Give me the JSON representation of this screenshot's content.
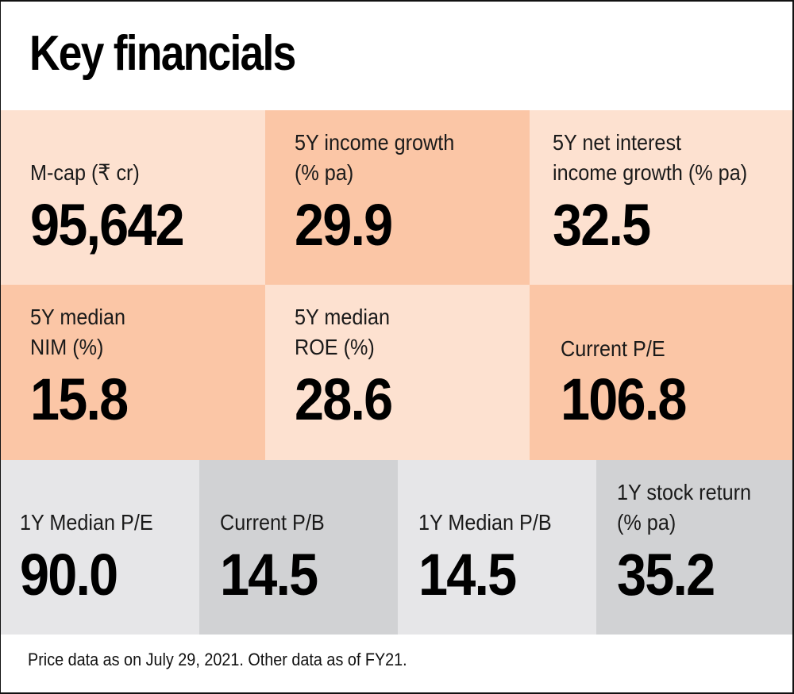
{
  "title": "Key financials",
  "row1": [
    {
      "label_lines": [
        "M-cap (₹ cr)"
      ],
      "value": "95,642"
    },
    {
      "label_lines": [
        "5Y income growth",
        "(% pa)"
      ],
      "value": "29.9"
    },
    {
      "label_lines": [
        "5Y net interest",
        "income growth (% pa)"
      ],
      "value": "32.5"
    }
  ],
  "row2": [
    {
      "label_lines": [
        "5Y median",
        "NIM (%)"
      ],
      "value": "15.8"
    },
    {
      "label_lines": [
        "5Y median",
        "ROE (%)"
      ],
      "value": "28.6"
    },
    {
      "label_lines": [
        "Current P/E"
      ],
      "value": "106.8"
    }
  ],
  "row3": [
    {
      "label_lines": [
        "1Y Median P/E"
      ],
      "value": "90.0"
    },
    {
      "label_lines": [
        "Current P/B"
      ],
      "value": "14.5"
    },
    {
      "label_lines": [
        "1Y Median P/B"
      ],
      "value": "14.5"
    },
    {
      "label_lines": [
        "1Y stock return",
        "(% pa)"
      ],
      "value": "35.2"
    }
  ],
  "footnote": "Price data as on July 29, 2021. Other data as of FY21.",
  "colors": {
    "orange_light": "#fde1d0",
    "orange_dark": "#fbc6a6",
    "grey_light": "#e6e6e8",
    "grey_dark": "#d1d2d4"
  }
}
